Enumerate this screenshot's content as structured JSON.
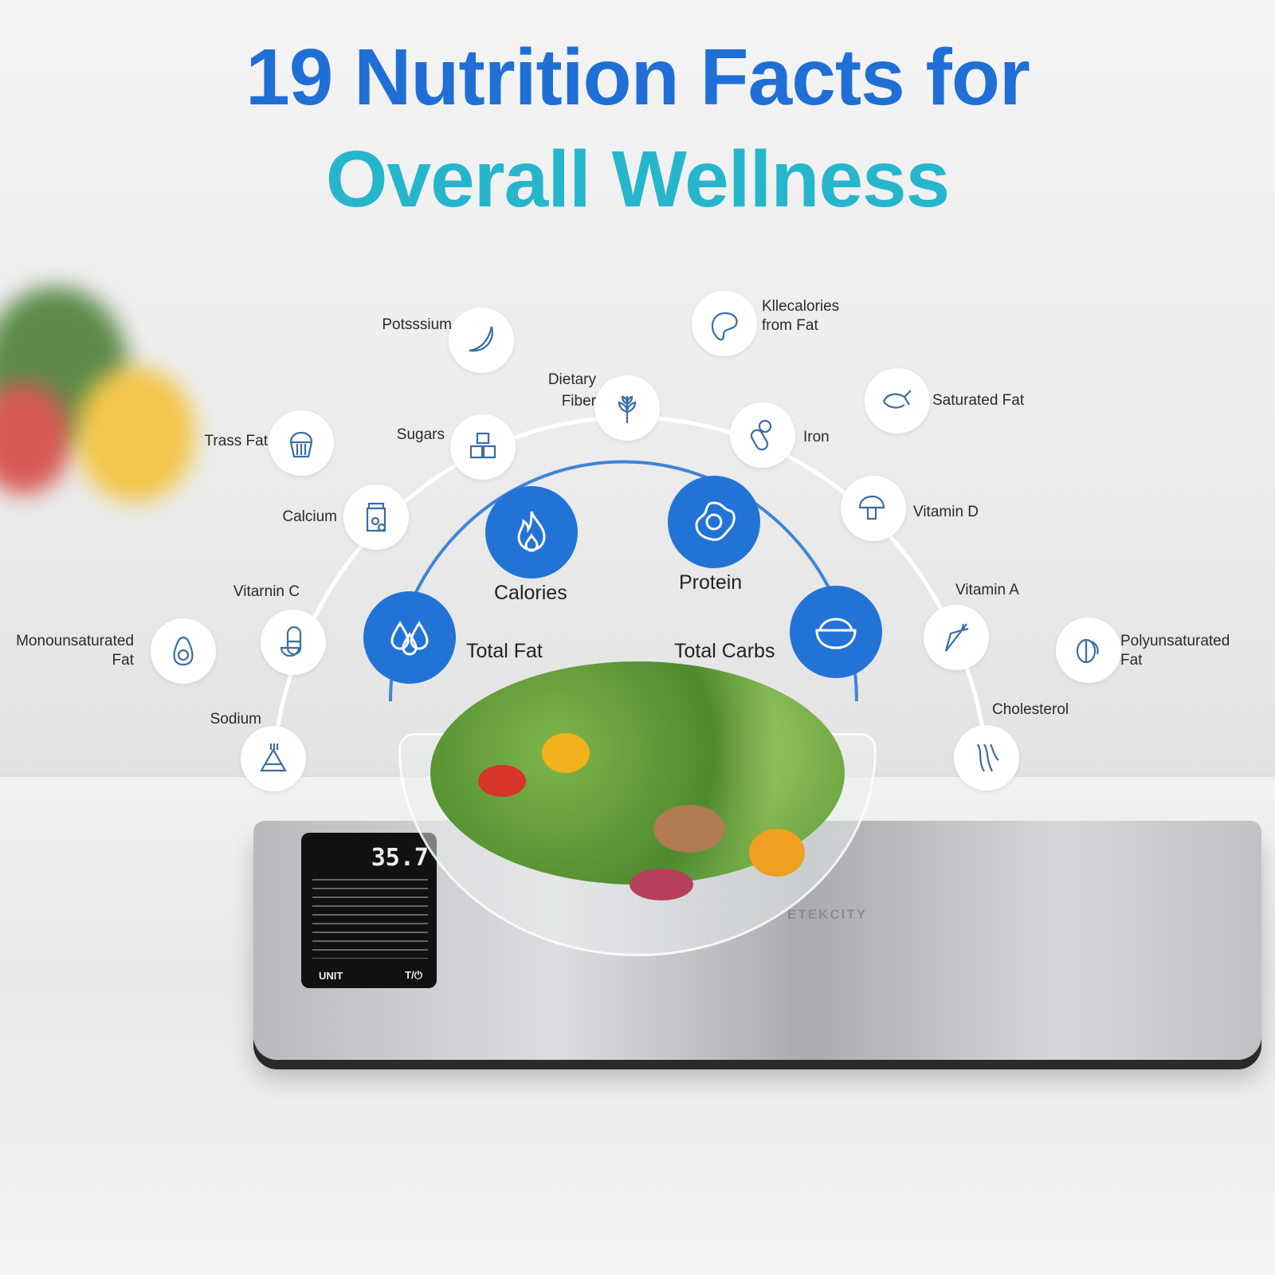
{
  "title": {
    "line1": "19 Nutrition Facts for",
    "line2": "Overall Wellness"
  },
  "colors": {
    "title_blue": "#1f6fd6",
    "title_cyan": "#26b6cc",
    "accent": "#2273d6",
    "icon_stroke": "#3a6ea5"
  },
  "primary": [
    {
      "label": "Calories",
      "icon": "flame-icon"
    },
    {
      "label": "Protein",
      "icon": "egg-icon"
    },
    {
      "label": "Total Fat",
      "icon": "droplets-icon"
    },
    {
      "label": "Total Carbs",
      "icon": "bowl-icon"
    }
  ],
  "nutrients": [
    {
      "label": "Potsssium",
      "icon": "banana-icon"
    },
    {
      "label": "Kllecalories from Fat",
      "icon": "meat-icon"
    },
    {
      "label": "Dietary Fiber",
      "icon": "wheat-icon"
    },
    {
      "label": "Saturated Fat",
      "icon": "chicken-icon"
    },
    {
      "label": "Trass Fat",
      "icon": "cupcake-icon"
    },
    {
      "label": "Sugars",
      "icon": "sugar-cubes-icon"
    },
    {
      "label": "Iron",
      "icon": "pill-icon"
    },
    {
      "label": "Calcium",
      "icon": "jar-icon"
    },
    {
      "label": "Vitamin D",
      "icon": "mushroom-icon"
    },
    {
      "label": "Vitarnin C",
      "icon": "capsule-citrus-icon"
    },
    {
      "label": "Monounsaturated Fat",
      "icon": "avocado-icon"
    },
    {
      "label": "Vitamin A",
      "icon": "carrot-icon"
    },
    {
      "label": "Polyunsaturated Fat",
      "icon": "nuts-icon"
    },
    {
      "label": "Sodium",
      "icon": "salt-icon"
    },
    {
      "label": "Cholesterol",
      "icon": "artery-icon"
    }
  ],
  "scale": {
    "weight": "35.7",
    "unit_button": "UNIT",
    "tare_button": "T/⏻",
    "brand": "ETEKCITY"
  }
}
